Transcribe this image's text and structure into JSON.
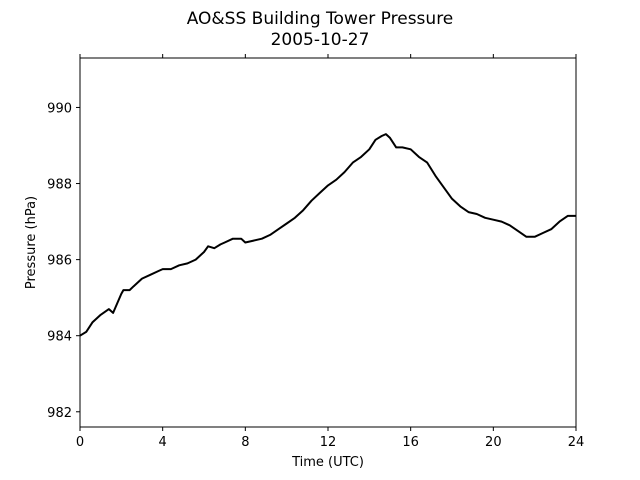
{
  "chart_data": {
    "type": "line",
    "title": "AO&SS Building Tower Pressure",
    "subtitle": "2005-10-27",
    "xlabel": "Time (UTC)",
    "ylabel": "Pressure (hPa)",
    "xlim": [
      0,
      24
    ],
    "ylim": [
      981.6,
      991.3
    ],
    "xticks": [
      0,
      4,
      8,
      12,
      16,
      20,
      24
    ],
    "yticks": [
      982,
      984,
      986,
      988,
      990
    ],
    "grid": false,
    "series": [
      {
        "color": "#000000",
        "x": [
          0,
          0.3,
          0.6,
          1.0,
          1.4,
          1.6,
          1.8,
          2.0,
          2.1,
          2.4,
          2.6,
          2.8,
          3.0,
          3.4,
          3.8,
          4.0,
          4.4,
          4.8,
          5.2,
          5.6,
          6.0,
          6.2,
          6.5,
          6.8,
          7.0,
          7.4,
          7.8,
          8.0,
          8.4,
          8.8,
          9.2,
          9.6,
          10.0,
          10.4,
          10.8,
          11.2,
          11.6,
          12.0,
          12.4,
          12.8,
          13.2,
          13.6,
          14.0,
          14.3,
          14.6,
          14.8,
          15.0,
          15.3,
          15.6,
          16.0,
          16.4,
          16.8,
          17.2,
          17.6,
          18.0,
          18.4,
          18.8,
          19.2,
          19.6,
          20.0,
          20.4,
          20.8,
          21.2,
          21.6,
          22.0,
          22.4,
          22.8,
          23.2,
          23.6,
          24.0
        ],
        "y": [
          984.0,
          984.1,
          984.35,
          984.55,
          984.7,
          984.6,
          984.85,
          985.1,
          985.2,
          985.2,
          985.3,
          985.4,
          985.5,
          985.6,
          985.7,
          985.75,
          985.75,
          985.85,
          985.9,
          986.0,
          986.2,
          986.35,
          986.3,
          986.4,
          986.45,
          986.55,
          986.55,
          986.45,
          986.5,
          986.55,
          986.65,
          986.8,
          986.95,
          987.1,
          987.3,
          987.55,
          987.75,
          987.95,
          988.1,
          988.3,
          988.55,
          988.7,
          988.9,
          989.15,
          989.25,
          989.3,
          989.2,
          988.95,
          988.95,
          988.9,
          988.7,
          988.55,
          988.2,
          987.9,
          987.6,
          987.4,
          987.25,
          987.2,
          987.1,
          987.05,
          987.0,
          986.9,
          986.75,
          986.6,
          986.6,
          986.7,
          986.8,
          987.0,
          987.15,
          987.15
        ]
      }
    ]
  }
}
